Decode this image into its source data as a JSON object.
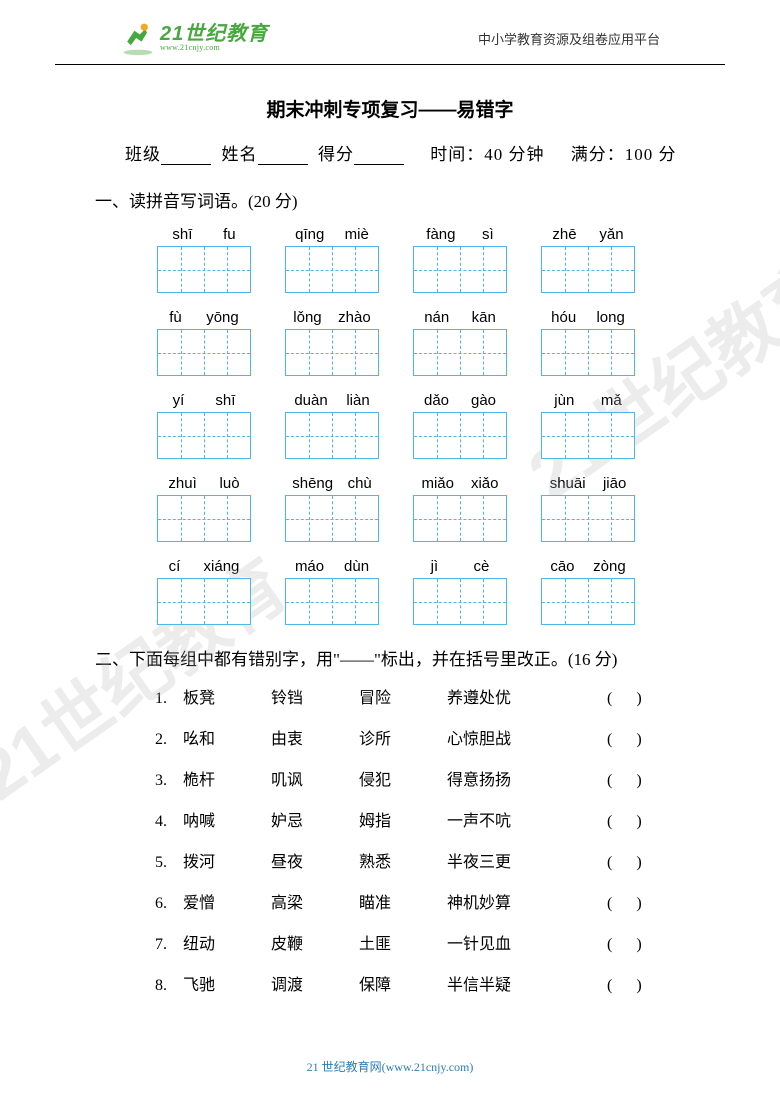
{
  "header": {
    "logo_cn": "21世纪教育",
    "logo_url": "www.21cnjy.com",
    "right_text": "中小学教育资源及组卷应用平台"
  },
  "title": "期末冲刺专项复习——易错字",
  "info": {
    "class_label": "班级",
    "name_label": "姓名",
    "score_label": "得分",
    "time_label": "时间：",
    "time_value": "40 分钟",
    "full_label": "满分：",
    "full_value": "100 分"
  },
  "section1": {
    "heading": "一、读拼音写词语。(20 分)",
    "rows": [
      [
        [
          "shī",
          "fu"
        ],
        [
          "qīng",
          "miè"
        ],
        [
          "fàng",
          "sì"
        ],
        [
          "zhē",
          "yǎn"
        ]
      ],
      [
        [
          "fù",
          "yōng"
        ],
        [
          "lǒng",
          "zhào"
        ],
        [
          "nán",
          "kān"
        ],
        [
          "hóu",
          "long"
        ]
      ],
      [
        [
          "yí",
          "shī"
        ],
        [
          "duàn",
          "liàn"
        ],
        [
          "dǎo",
          "gào"
        ],
        [
          "jùn",
          "mǎ"
        ]
      ],
      [
        [
          "zhuì",
          "luò"
        ],
        [
          "shēng",
          "chù"
        ],
        [
          "miǎo",
          "xiǎo"
        ],
        [
          "shuāi",
          "jiāo"
        ]
      ],
      [
        [
          "cí",
          "xiáng"
        ],
        [
          "máo",
          "dùn"
        ],
        [
          "jì",
          "cè"
        ],
        [
          "cāo",
          "zòng"
        ]
      ]
    ]
  },
  "section2": {
    "heading": "二、下面每组中都有错别字，用\"——\"标出，并在括号里改正。(16 分)",
    "items": [
      {
        "n": "1.",
        "w": [
          "板凳",
          "铃铛",
          "冒险",
          "养遵处优"
        ]
      },
      {
        "n": "2.",
        "w": [
          "吆和",
          "由衷",
          "诊所",
          "心惊胆战"
        ]
      },
      {
        "n": "3.",
        "w": [
          "桅杆",
          "叽讽",
          "侵犯",
          "得意扬扬"
        ]
      },
      {
        "n": "4.",
        "w": [
          "呐喊",
          "妒忌",
          "姆指",
          "一声不吭"
        ]
      },
      {
        "n": "5.",
        "w": [
          "拨河",
          "昼夜",
          "熟悉",
          "半夜三更"
        ]
      },
      {
        "n": "6.",
        "w": [
          "爱憎",
          "高梁",
          "瞄准",
          "神机妙算"
        ]
      },
      {
        "n": "7.",
        "w": [
          "纽动",
          "皮鞭",
          "土匪",
          "一针见血"
        ]
      },
      {
        "n": "8.",
        "w": [
          "飞驰",
          "调渡",
          "保障",
          "半信半疑"
        ]
      }
    ]
  },
  "watermark": "21世纪教育",
  "footer": "21 世纪教育网(www.21cnjy.com)",
  "colors": {
    "grid_border": "#4db8e8",
    "logo_green": "#47a83e",
    "footer_blue": "#2a7fb8"
  }
}
